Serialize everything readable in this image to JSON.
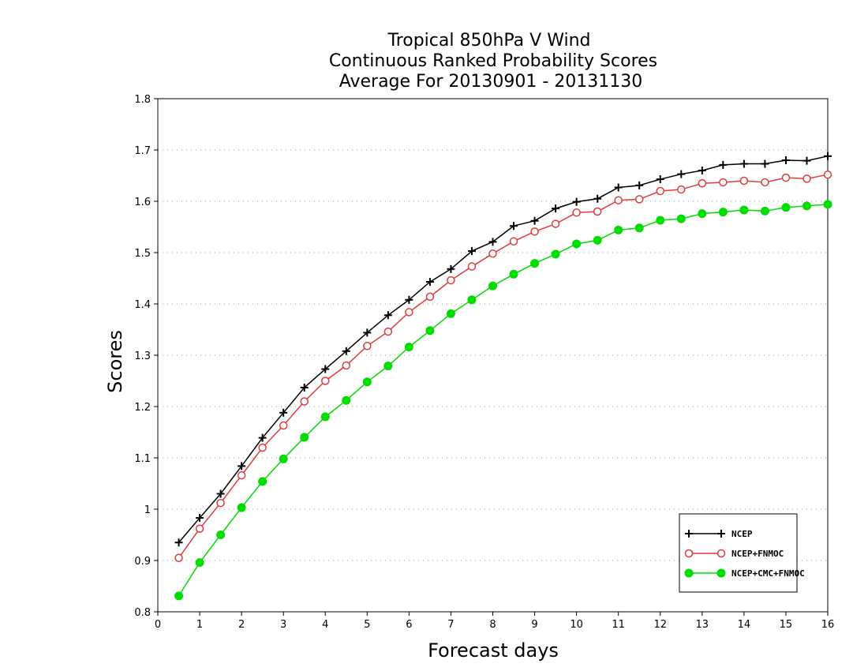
{
  "chart_data": {
    "type": "line",
    "title_lines": [
      "Tropical 850hPa V Wind",
      "Continuous Ranked Probability Scores",
      "Average For 20130901 - 20131130"
    ],
    "xlabel": "Forecast days",
    "ylabel": "Scores",
    "xlim": [
      0,
      16
    ],
    "ylim": [
      0.8,
      1.8
    ],
    "xticks": [
      "0",
      "1",
      "2",
      "3",
      "4",
      "5",
      "6",
      "7",
      "8",
      "9",
      "10",
      "11",
      "12",
      "13",
      "14",
      "15",
      "16"
    ],
    "yticks": [
      "0.8",
      "0.9",
      "1",
      "1.1",
      "1.2",
      "1.3",
      "1.4",
      "1.5",
      "1.6",
      "1.7",
      "1.8"
    ],
    "grid": "horizontal dotted",
    "legend_position": "bottom-right",
    "x": [
      0.5,
      1,
      1.5,
      2,
      2.5,
      3,
      3.5,
      4,
      4.5,
      5,
      5.5,
      6,
      6.5,
      7,
      7.5,
      8,
      8.5,
      9,
      9.5,
      10,
      10.5,
      11,
      11.5,
      12,
      12.5,
      13,
      13.5,
      14,
      14.5,
      15,
      15.5,
      16
    ],
    "series": [
      {
        "name": "NCEP",
        "color": "#000000",
        "marker": "plus",
        "values": [
          0.935,
          0.983,
          1.03,
          1.084,
          1.139,
          1.188,
          1.237,
          1.273,
          1.308,
          1.344,
          1.378,
          1.408,
          1.443,
          1.468,
          1.503,
          1.521,
          1.552,
          1.562,
          1.586,
          1.599,
          1.605,
          1.627,
          1.631,
          1.643,
          1.653,
          1.66,
          1.671,
          1.673,
          1.673,
          1.68,
          1.679,
          1.688
        ]
      },
      {
        "name": "NCEP+FNMOC",
        "color": "#e03c3c",
        "marker": "open-circle",
        "values": [
          0.905,
          0.962,
          1.012,
          1.066,
          1.12,
          1.163,
          1.21,
          1.25,
          1.28,
          1.318,
          1.346,
          1.384,
          1.414,
          1.446,
          1.473,
          1.498,
          1.522,
          1.541,
          1.556,
          1.578,
          1.58,
          1.602,
          1.604,
          1.62,
          1.623,
          1.635,
          1.637,
          1.64,
          1.637,
          1.646,
          1.644,
          1.652
        ]
      },
      {
        "name": "NCEP+CMC+FNMOC",
        "color": "#00dd00",
        "marker": "filled-circle",
        "values": [
          0.831,
          0.896,
          0.95,
          1.003,
          1.054,
          1.098,
          1.14,
          1.18,
          1.212,
          1.248,
          1.279,
          1.316,
          1.348,
          1.381,
          1.408,
          1.435,
          1.458,
          1.479,
          1.497,
          1.517,
          1.524,
          1.544,
          1.548,
          1.563,
          1.566,
          1.576,
          1.579,
          1.583,
          1.581,
          1.588,
          1.591,
          1.594
        ]
      }
    ]
  }
}
